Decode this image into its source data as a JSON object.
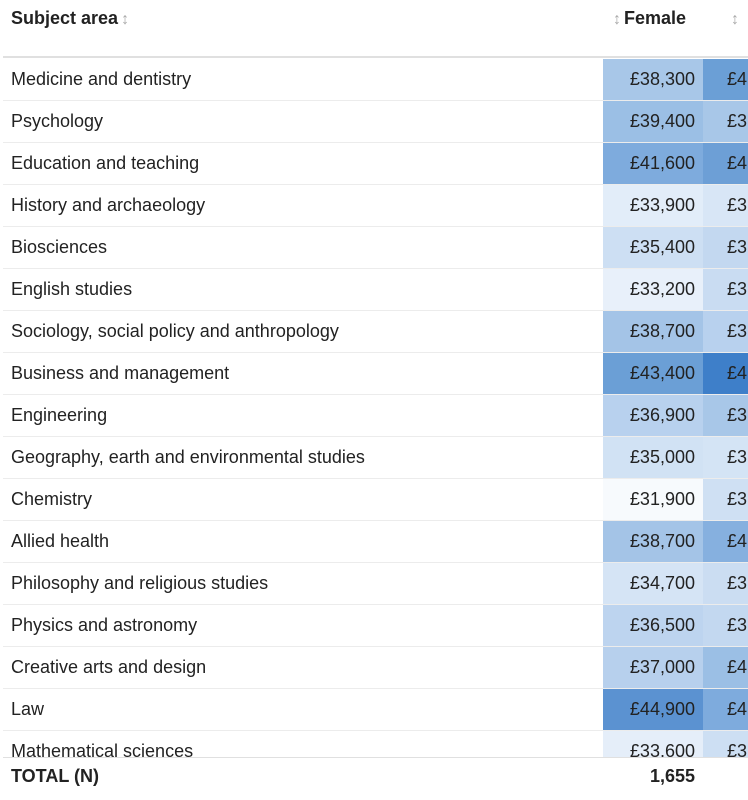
{
  "header": {
    "subject_label": "Subject area",
    "female_label": "Female",
    "sort_glyph": "↕"
  },
  "rows": [
    {
      "subject": "Medicine and dentistry",
      "female": "£38,300",
      "female_bg": "#a8c7e8",
      "male": "£4",
      "male_bg": "#6b9fd6"
    },
    {
      "subject": "Psychology",
      "female": "£39,400",
      "female_bg": "#9bbfe5",
      "male": "£3",
      "male_bg": "#a8c7e8"
    },
    {
      "subject": "Education and teaching",
      "female": "£41,600",
      "female_bg": "#7eabdd",
      "male": "£4",
      "male_bg": "#6d9fd6"
    },
    {
      "subject": "History and archaeology",
      "female": "£33,900",
      "female_bg": "#e2edf9",
      "male": "£3",
      "male_bg": "#d8e6f6"
    },
    {
      "subject": "Biosciences",
      "female": "£35,400",
      "female_bg": "#cddff3",
      "male": "£3",
      "male_bg": "#c3d8f0"
    },
    {
      "subject": "English studies",
      "female": "£33,200",
      "female_bg": "#e8f0fa",
      "male": "£3",
      "male_bg": "#c9dcf2"
    },
    {
      "subject": "Sociology, social policy and anthropology",
      "female": "£38,700",
      "female_bg": "#a4c4e7",
      "male": "£3",
      "male_bg": "#b8d1ee"
    },
    {
      "subject": "Business and management",
      "female": "£43,400",
      "female_bg": "#6b9fd6",
      "male": "£4",
      "male_bg": "#3e7fc9"
    },
    {
      "subject": "Engineering",
      "female": "£36,900",
      "female_bg": "#b8d1ee",
      "male": "£3",
      "male_bg": "#a8c7e8"
    },
    {
      "subject": "Geography, earth and environmental studies",
      "female": "£35,000",
      "female_bg": "#d1e2f4",
      "male": "£3",
      "male_bg": "#d4e4f5"
    },
    {
      "subject": "Chemistry",
      "female": "£31,900",
      "female_bg": "#f7fafd",
      "male": "£3",
      "male_bg": "#cfe0f3"
    },
    {
      "subject": "Allied health",
      "female": "£38,700",
      "female_bg": "#a4c4e7",
      "male": "£4",
      "male_bg": "#86b0df"
    },
    {
      "subject": "Philosophy and religious studies",
      "female": "£34,700",
      "female_bg": "#d5e4f5",
      "male": "£3",
      "male_bg": "#cbddf2"
    },
    {
      "subject": "Physics and astronomy",
      "female": "£36,500",
      "female_bg": "#bdd4ef",
      "male": "£3",
      "male_bg": "#c3d8f0"
    },
    {
      "subject": "Creative arts and design",
      "female": "£37,000",
      "female_bg": "#b7d0ed",
      "male": "£4",
      "male_bg": "#9bbfe5"
    },
    {
      "subject": "Law",
      "female": "£44,900",
      "female_bg": "#5b92d1",
      "male": "£4",
      "male_bg": "#7eabdd"
    },
    {
      "subject": "Mathematical sciences",
      "female": "£33,600",
      "female_bg": "#e5eef9",
      "male": "£3",
      "male_bg": "#cddff3"
    }
  ],
  "footer": {
    "total_label": "TOTAL (N)",
    "total_female": "1,655"
  }
}
